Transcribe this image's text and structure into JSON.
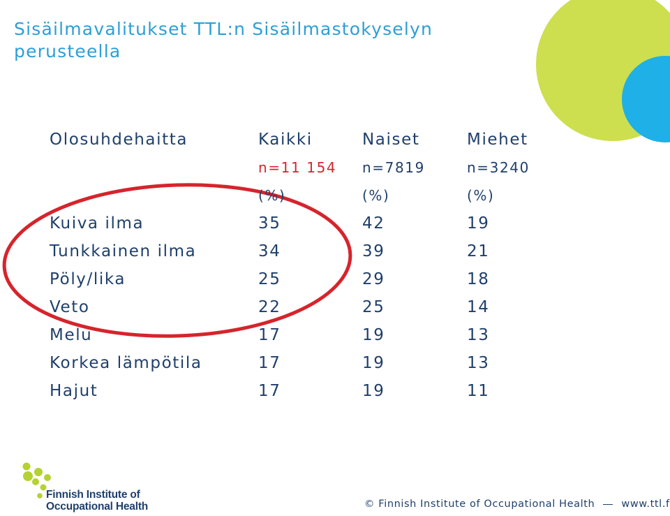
{
  "slide": {
    "title_line1": "Sisäilmavalitukset TTL:n Sisäilmastokyselyn",
    "title_line2": "perusteella"
  },
  "table": {
    "headers": [
      "Olosuhdehaitta",
      "Kaikki",
      "Naiset",
      "Miehet"
    ],
    "n_row": [
      "",
      "n=11 154",
      "n=7819",
      "n=3240"
    ],
    "unit_row": [
      "",
      "(%)",
      "(%)",
      "(%)"
    ],
    "rows": [
      [
        "Kuiva ilma",
        "35",
        "42",
        "19"
      ],
      [
        "Tunkkainen ilma",
        "34",
        "39",
        "21"
      ],
      [
        "Pöly/lika",
        "25",
        "29",
        "18"
      ],
      [
        "Veto",
        "22",
        "25",
        "14"
      ],
      [
        "Melu",
        "17",
        "19",
        "13"
      ],
      [
        "Korkea lämpötila",
        "17",
        "19",
        "13"
      ],
      [
        "Hajut",
        "17",
        "19",
        "11"
      ]
    ]
  },
  "logo": {
    "line1": "Finnish Institute of",
    "line2": "Occupational Health"
  },
  "footer": {
    "copyright": "© Finnish Institute of Occupational Health",
    "url": "www.ttl.fi"
  },
  "colors": {
    "title": "#2c9fd6",
    "text": "#1f3f6b",
    "highlight_red": "#d6242c",
    "deco_green": "#c8dc3c",
    "deco_blue": "#1eb0e6",
    "logo_green": "#b4d232"
  }
}
